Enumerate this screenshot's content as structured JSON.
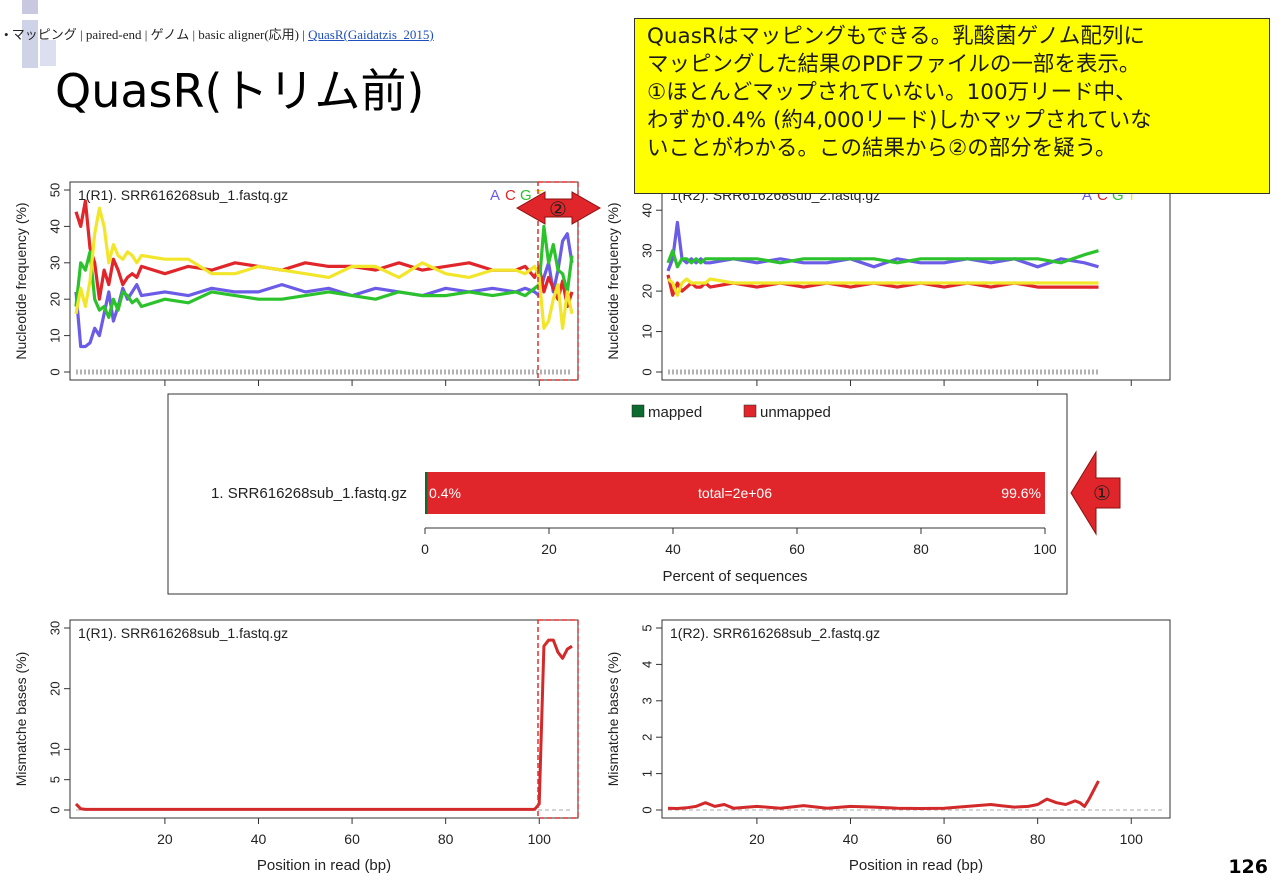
{
  "breadcrumb": {
    "prefix": "• マッピング | paired-end | ゲノム | basic aligner(応用) | ",
    "link": "QuasR(Gaidatzis_2015)"
  },
  "title": "QuasR(トリム前)",
  "callout_lines": [
    "QuasRはマッピングもできる。乳酸菌ゲノム配列に",
    "マッピングした結果のPDFファイルの一部を表示。",
    "①ほとんどマップされていない。100万リード中、",
    "わずか0.4% (約4,000リード)しかマップされていな",
    "いことがわかる。この結果から②の部分を疑う。"
  ],
  "markers": {
    "m1": "①",
    "m2": "②"
  },
  "page_number": "126",
  "colors": {
    "A": "#6a5ce6",
    "C": "#e0262a",
    "G": "#2cc22c",
    "T": "#f2e62a",
    "N": "#b3b3b3",
    "mapped": "#0c6b2f",
    "unmapped": "#e0262a",
    "mismatch": "#d22a2a",
    "highlight": "#e03030",
    "callout_bg": "#ffff00"
  },
  "chart_data": [
    {
      "type": "line",
      "title": "1(R1). SRR616268sub_1.fastq.gz",
      "ylabel": "Nucleotide frequency (%)",
      "xlim": [
        1,
        107
      ],
      "ylim": [
        0,
        50
      ],
      "yticks": [
        "0",
        "10",
        "20",
        "30",
        "40",
        "50"
      ],
      "legend": [
        "A",
        "C",
        "G",
        "T"
      ],
      "x": [
        1,
        2,
        3,
        4,
        5,
        6,
        7,
        8,
        9,
        10,
        11,
        12,
        13,
        14,
        15,
        20,
        25,
        30,
        35,
        40,
        45,
        50,
        55,
        60,
        65,
        70,
        75,
        80,
        85,
        90,
        95,
        97,
        99,
        100,
        101,
        102,
        103,
        104,
        105,
        106,
        107
      ],
      "series": [
        {
          "name": "A",
          "values": [
            22,
            7,
            7,
            8,
            12,
            10,
            16,
            22,
            14,
            18,
            23,
            20,
            22,
            24,
            21,
            22,
            21,
            23,
            22,
            22,
            24,
            22,
            23,
            21,
            23,
            22,
            21,
            23,
            22,
            23,
            22,
            23,
            22,
            21,
            26,
            30,
            22,
            28,
            36,
            38,
            30
          ]
        },
        {
          "name": "C",
          "values": [
            44,
            40,
            47,
            34,
            30,
            20,
            28,
            24,
            31,
            28,
            24,
            26,
            27,
            26,
            29,
            27,
            29,
            28,
            30,
            29,
            28,
            30,
            29,
            29,
            28,
            30,
            28,
            29,
            30,
            28,
            28,
            29,
            26,
            29,
            22,
            26,
            23,
            20,
            25,
            18,
            22
          ]
        },
        {
          "name": "G",
          "values": [
            18,
            30,
            28,
            33,
            20,
            17,
            18,
            15,
            20,
            17,
            22,
            21,
            19,
            20,
            18,
            20,
            19,
            22,
            21,
            20,
            20,
            21,
            22,
            21,
            20,
            22,
            21,
            21,
            22,
            21,
            22,
            21,
            23,
            24,
            40,
            30,
            35,
            28,
            27,
            22,
            32
          ]
        },
        {
          "name": "T",
          "values": [
            16,
            23,
            18,
            25,
            38,
            45,
            40,
            30,
            35,
            32,
            31,
            33,
            32,
            30,
            32,
            31,
            31,
            27,
            27,
            29,
            28,
            27,
            26,
            29,
            29,
            26,
            30,
            27,
            26,
            28,
            28,
            27,
            29,
            26,
            12,
            14,
            20,
            24,
            12,
            22,
            16
          ]
        },
        {
          "name": "N",
          "values": [
            0,
            0,
            0,
            0,
            0,
            0,
            0,
            0,
            0,
            0,
            0,
            0,
            0,
            0,
            0,
            0,
            0,
            0,
            0,
            0,
            0,
            0,
            0,
            0,
            0,
            0,
            0,
            0,
            0,
            0,
            0,
            0,
            0,
            0,
            0,
            0,
            0,
            0,
            0,
            0,
            0
          ]
        }
      ]
    },
    {
      "type": "line",
      "title": "1(R2). SRR616268sub_2.fastq.gz",
      "ylabel": "Nucleotide frequency (%)",
      "xlim": [
        1,
        93
      ],
      "ylim": [
        0,
        45
      ],
      "yticks": [
        "0",
        "10",
        "20",
        "30",
        "40"
      ],
      "legend": [
        "A",
        "C",
        "G",
        "T"
      ],
      "x": [
        1,
        2,
        3,
        4,
        5,
        6,
        7,
        8,
        9,
        10,
        15,
        20,
        25,
        30,
        35,
        40,
        45,
        50,
        55,
        60,
        65,
        70,
        75,
        80,
        85,
        90,
        93
      ],
      "series": [
        {
          "name": "A",
          "values": [
            25,
            28,
            37,
            28,
            27,
            28,
            27,
            28,
            27,
            27,
            28,
            27,
            28,
            27,
            27,
            28,
            26,
            28,
            27,
            27,
            28,
            27,
            28,
            26,
            28,
            27,
            26
          ]
        },
        {
          "name": "C",
          "values": [
            24,
            19,
            22,
            20,
            21,
            22,
            21,
            21,
            22,
            21,
            22,
            21,
            22,
            21,
            22,
            21,
            22,
            21,
            22,
            21,
            22,
            21,
            22,
            21,
            21,
            21,
            21
          ]
        },
        {
          "name": "G",
          "values": [
            27,
            30,
            26,
            28,
            28,
            27,
            28,
            27,
            28,
            28,
            28,
            28,
            27,
            28,
            28,
            28,
            28,
            27,
            28,
            28,
            28,
            28,
            28,
            28,
            27,
            29,
            30
          ]
        },
        {
          "name": "T",
          "values": [
            23,
            22,
            19,
            22,
            23,
            22,
            22,
            22,
            22,
            23,
            22,
            22,
            22,
            22,
            22,
            22,
            22,
            22,
            22,
            22,
            22,
            22,
            22,
            22,
            22,
            22,
            22
          ]
        },
        {
          "name": "N",
          "values": [
            0,
            0,
            0,
            0,
            0,
            0,
            0,
            0,
            0,
            0,
            0,
            0,
            0,
            0,
            0,
            0,
            0,
            0,
            0,
            0,
            0,
            0,
            0,
            0,
            0,
            0,
            0
          ]
        }
      ]
    },
    {
      "type": "bar",
      "orientation": "horizontal",
      "categories": [
        "1. SRR616268sub_1.fastq.gz"
      ],
      "series": [
        {
          "name": "mapped",
          "values": [
            0.4
          ]
        },
        {
          "name": "unmapped",
          "values": [
            99.6
          ]
        }
      ],
      "labels": {
        "mapped": "0.4%",
        "unmapped": "99.6%",
        "total": "total=2e+06"
      },
      "xlabel": "Percent of sequences",
      "xlim": [
        0,
        100
      ],
      "xticks": [
        "0",
        "20",
        "40",
        "60",
        "80",
        "100"
      ]
    },
    {
      "type": "line",
      "title": "1(R1). SRR616268sub_1.fastq.gz",
      "ylabel": "Mismatche bases (%)",
      "xlabel": "Position in read (bp)",
      "xlim": [
        1,
        107
      ],
      "ylim": [
        0,
        30
      ],
      "yticks": [
        "0",
        "5",
        "10",
        "20",
        "30"
      ],
      "xticks": [
        "20",
        "40",
        "60",
        "80",
        "100"
      ],
      "x": [
        1,
        2,
        3,
        10,
        20,
        30,
        40,
        50,
        60,
        70,
        80,
        90,
        99,
        100,
        101,
        102,
        103,
        104,
        105,
        106,
        107
      ],
      "values": [
        1,
        0.2,
        0.1,
        0.1,
        0.1,
        0.1,
        0.1,
        0.1,
        0.1,
        0.1,
        0.1,
        0.1,
        0.1,
        1,
        27,
        28,
        28,
        26,
        25,
        26.5,
        27
      ]
    },
    {
      "type": "line",
      "title": "1(R2). SRR616268sub_2.fastq.gz",
      "ylabel": "Mismatche bases (%)",
      "xlabel": "Position in read (bp)",
      "xlim": [
        1,
        107
      ],
      "ylim": [
        0,
        5
      ],
      "yticks": [
        "0",
        "1",
        "2",
        "3",
        "4",
        "5"
      ],
      "xticks": [
        "20",
        "40",
        "60",
        "80",
        "100"
      ],
      "x": [
        1,
        3,
        5,
        7,
        9,
        11,
        13,
        15,
        20,
        25,
        30,
        35,
        40,
        45,
        50,
        55,
        60,
        65,
        70,
        72,
        75,
        78,
        80,
        82,
        84,
        86,
        88,
        89,
        90,
        91,
        92,
        93
      ],
      "values": [
        0.05,
        0.04,
        0.06,
        0.1,
        0.2,
        0.1,
        0.15,
        0.05,
        0.1,
        0.05,
        0.12,
        0.05,
        0.1,
        0.08,
        0.05,
        0.04,
        0.05,
        0.1,
        0.15,
        0.12,
        0.08,
        0.1,
        0.15,
        0.3,
        0.2,
        0.15,
        0.25,
        0.2,
        0.1,
        0.3,
        0.55,
        0.8
      ]
    }
  ]
}
